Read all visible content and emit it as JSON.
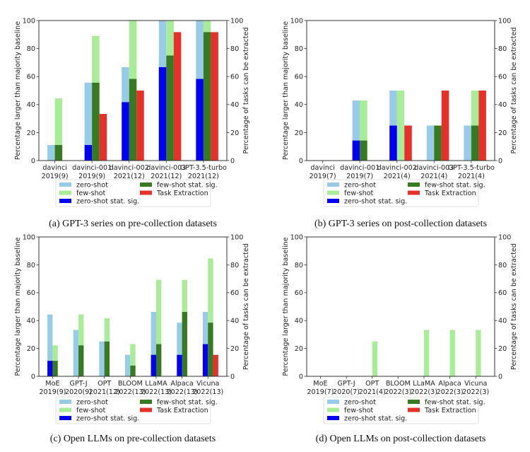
{
  "legend": {
    "items": [
      {
        "key": "zs",
        "label": "zero-shot",
        "color": "#97cbe8"
      },
      {
        "key": "fs",
        "label": "few-shot",
        "color": "#a8ec98"
      },
      {
        "key": "zss",
        "label": "zero-shot stat. sig.",
        "color": "#0000f5"
      },
      {
        "key": "fss",
        "label": "few-shot stat. sig.",
        "color": "#377a22"
      },
      {
        "key": "te",
        "label": "Task Extraction",
        "color": "#e8302a"
      }
    ]
  },
  "chart_data": [
    {
      "id": "a",
      "type": "bar",
      "caption": "(a) GPT-3 series on pre-collection datasets",
      "ylabel": "Percentage larger than majority baseline",
      "ylabel_right": "Percentage of tasks can be extracted",
      "ylim": [
        0,
        100
      ],
      "yticks": [
        "0",
        "20",
        "40",
        "60",
        "80",
        "100"
      ],
      "categories": [
        [
          "davinci",
          "2019(9)"
        ],
        [
          "davinci-001",
          "2019(9)"
        ],
        [
          "davinci-002",
          "2021(12)"
        ],
        [
          "davinci-003",
          "2021(12)"
        ],
        [
          "GPT-3.5-turbo",
          "2021(12)"
        ]
      ],
      "series": [
        {
          "name": "zero-shot",
          "key": "zs",
          "values": [
            11.1,
            55.6,
            66.7,
            100,
            100
          ]
        },
        {
          "name": "few-shot",
          "key": "fs",
          "values": [
            44.4,
            88.9,
            100,
            100,
            100
          ]
        },
        {
          "name": "zero-shot stat. sig.",
          "key": "zss",
          "values": [
            0,
            11.1,
            41.7,
            66.7,
            58.3
          ]
        },
        {
          "name": "few-shot stat. sig.",
          "key": "fss",
          "values": [
            11.1,
            55.6,
            58.3,
            75,
            91.7
          ]
        },
        {
          "name": "Task Extraction",
          "key": "te",
          "values": [
            0,
            33.3,
            50,
            91.7,
            91.7
          ]
        }
      ]
    },
    {
      "id": "b",
      "type": "bar",
      "caption": "(b) GPT-3 series on post-collection datasets",
      "ylabel": "Percentage larger than majority baseline",
      "ylabel_right": "Percentage of tasks can be extracted",
      "ylim": [
        0,
        100
      ],
      "yticks": [
        "0",
        "20",
        "40",
        "60",
        "80",
        "100"
      ],
      "categories": [
        [
          "davinci",
          "2019(7)"
        ],
        [
          "davinci-001",
          "2019(7)"
        ],
        [
          "davinci-002",
          "2021(4)"
        ],
        [
          "davinci-003",
          "2021(4)"
        ],
        [
          "GPT-3.5-turbo",
          "2021(4)"
        ]
      ],
      "series": [
        {
          "name": "zero-shot",
          "key": "zs",
          "values": [
            0,
            42.9,
            50,
            25,
            25
          ]
        },
        {
          "name": "few-shot",
          "key": "fs",
          "values": [
            0,
            42.9,
            50,
            25,
            50
          ]
        },
        {
          "name": "zero-shot stat. sig.",
          "key": "zss",
          "values": [
            0,
            14.3,
            25,
            0,
            0
          ]
        },
        {
          "name": "few-shot stat. sig.",
          "key": "fss",
          "values": [
            0,
            14.3,
            0,
            25,
            25
          ]
        },
        {
          "name": "Task Extraction",
          "key": "te",
          "values": [
            0,
            0,
            25,
            50,
            50
          ]
        }
      ]
    },
    {
      "id": "c",
      "type": "bar",
      "caption": "(c) Open LLMs on pre-collection datasets",
      "ylabel": "Percentage larger than majority baseline",
      "ylabel_right": "Percentage of tasks can be extracted",
      "ylim": [
        0,
        100
      ],
      "yticks": [
        "0",
        "20",
        "40",
        "60",
        "80",
        "100"
      ],
      "categories": [
        [
          "MoE",
          "2019(9)"
        ],
        [
          "GPT-J",
          "2020(9)"
        ],
        [
          "OPT",
          "2021(12)"
        ],
        [
          "BLOOM",
          "2022(13)"
        ],
        [
          "LLaMA",
          "2022(13)"
        ],
        [
          "Alpaca",
          "2022(13)"
        ],
        [
          "Vicuna",
          "2022(13)"
        ]
      ],
      "series": [
        {
          "name": "zero-shot",
          "key": "zs",
          "values": [
            44.4,
            33.3,
            25,
            15.4,
            46.2,
            38.5,
            46.2
          ]
        },
        {
          "name": "few-shot",
          "key": "fs",
          "values": [
            22.2,
            44.4,
            41.7,
            23.1,
            69.2,
            69.2,
            84.6
          ]
        },
        {
          "name": "zero-shot stat. sig.",
          "key": "zss",
          "values": [
            11.1,
            0,
            0,
            0,
            15.4,
            15.4,
            23.1
          ]
        },
        {
          "name": "few-shot stat. sig.",
          "key": "fss",
          "values": [
            11.1,
            22.2,
            25,
            7.7,
            23.1,
            46.2,
            38.5
          ]
        },
        {
          "name": "Task Extraction",
          "key": "te",
          "values": [
            0,
            0,
            0,
            0,
            0,
            0,
            15.4
          ]
        }
      ]
    },
    {
      "id": "d",
      "type": "bar",
      "caption": "(d) Open LLMs on post-collection datasets",
      "ylabel": "Percentage larger than majority baseline",
      "ylabel_right": "Percentage of tasks can be extracted",
      "ylim": [
        0,
        100
      ],
      "yticks": [
        "0",
        "20",
        "40",
        "60",
        "80",
        "100"
      ],
      "categories": [
        [
          "MoE",
          "2019(7)"
        ],
        [
          "GPT-J",
          "2020(7)"
        ],
        [
          "OPT",
          "2021(4)"
        ],
        [
          "BLOOM",
          "2022(3)"
        ],
        [
          "LLaMA",
          "2022(3)"
        ],
        [
          "Alpaca",
          "2022(3)"
        ],
        [
          "Vicuna",
          "2022(3)"
        ]
      ],
      "series": [
        {
          "name": "zero-shot",
          "key": "zs",
          "values": [
            0,
            0,
            0,
            0,
            0,
            0,
            0
          ]
        },
        {
          "name": "few-shot",
          "key": "fs",
          "values": [
            0,
            0,
            25,
            0,
            33.3,
            33.3,
            33.3
          ]
        },
        {
          "name": "zero-shot stat. sig.",
          "key": "zss",
          "values": [
            0,
            0,
            0,
            0,
            0,
            0,
            0
          ]
        },
        {
          "name": "few-shot stat. sig.",
          "key": "fss",
          "values": [
            0,
            0,
            0,
            0,
            0,
            0,
            0
          ]
        },
        {
          "name": "Task Extraction",
          "key": "te",
          "values": [
            0,
            0,
            0,
            0,
            0,
            0,
            0
          ]
        }
      ]
    }
  ]
}
